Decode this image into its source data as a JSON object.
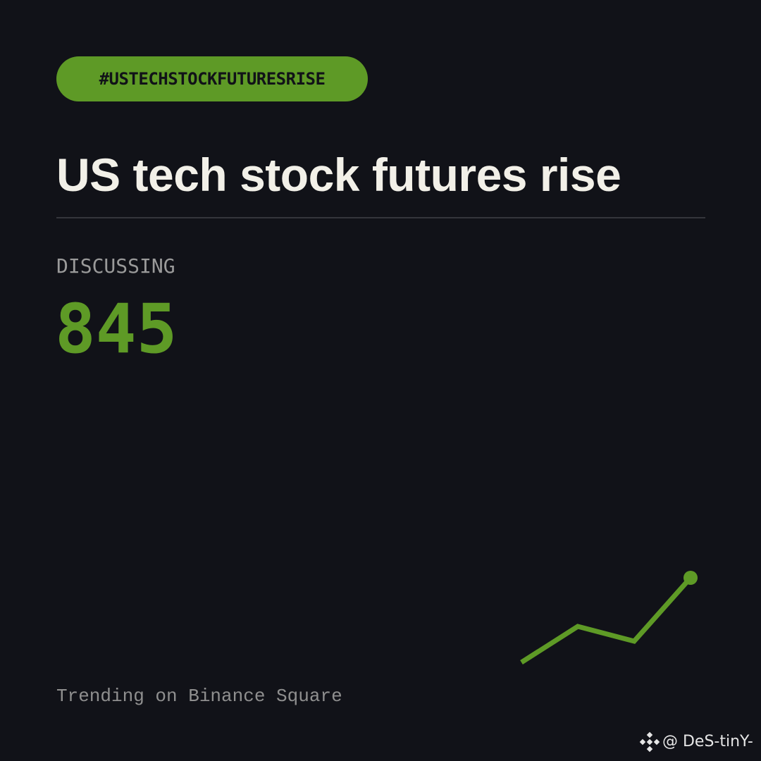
{
  "tag": "#USTECHSTOCKFUTURESRISE",
  "title": "US tech stock futures rise",
  "metric": {
    "label": "DISCUSSING",
    "value": 845
  },
  "footer": "Trending on Binance Square",
  "watermark": "@ DeS-tinY-"
}
